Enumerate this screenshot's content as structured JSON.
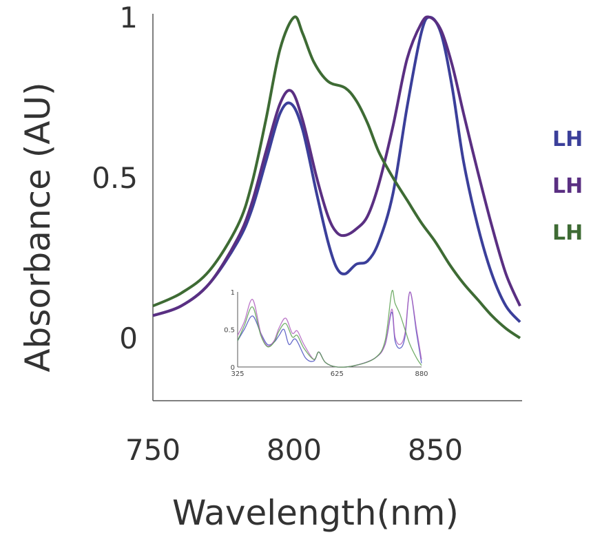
{
  "chart_data": [
    {
      "type": "line",
      "xlabel": "Wavelength(nm)",
      "ylabel": "Absorbance (AU)",
      "xlim": [
        750,
        880
      ],
      "ylim": [
        -0.19,
        1
      ],
      "xticks": [
        "750",
        "800",
        "850"
      ],
      "yticks": [
        "0",
        "0.5",
        "1"
      ],
      "grid": false,
      "legend_position": "right (cropped)",
      "series": [
        {
          "name": "LH",
          "color": "#3b3f9a",
          "x": [
            750,
            760,
            770,
            780,
            785,
            790,
            795,
            799,
            803,
            808,
            812,
            815,
            818,
            822,
            826,
            830,
            835,
            840,
            845,
            848,
            852,
            856,
            860,
            865,
            870,
            875,
            880
          ],
          "y": [
            0.07,
            0.1,
            0.17,
            0.3,
            0.4,
            0.55,
            0.7,
            0.73,
            0.65,
            0.45,
            0.3,
            0.22,
            0.2,
            0.23,
            0.24,
            0.3,
            0.45,
            0.72,
            0.95,
            1.0,
            0.95,
            0.78,
            0.55,
            0.35,
            0.2,
            0.1,
            0.05
          ]
        },
        {
          "name": "LH",
          "color": "#5a2f82",
          "x": [
            750,
            760,
            770,
            780,
            785,
            790,
            795,
            799,
            803,
            808,
            812,
            815,
            818,
            822,
            826,
            830,
            835,
            840,
            845,
            848,
            852,
            856,
            860,
            865,
            870,
            875,
            880
          ],
          "y": [
            0.07,
            0.1,
            0.17,
            0.31,
            0.42,
            0.58,
            0.73,
            0.77,
            0.68,
            0.5,
            0.38,
            0.33,
            0.32,
            0.34,
            0.38,
            0.48,
            0.66,
            0.87,
            0.98,
            1.0,
            0.96,
            0.85,
            0.7,
            0.52,
            0.35,
            0.2,
            0.1
          ]
        },
        {
          "name": "LH",
          "color": "#3e6b34",
          "x": [
            750,
            760,
            770,
            780,
            785,
            790,
            795,
            800,
            803,
            807,
            812,
            818,
            822,
            826,
            830,
            835,
            840,
            845,
            850,
            855,
            860,
            865,
            870,
            875,
            880
          ],
          "y": [
            0.1,
            0.14,
            0.21,
            0.35,
            0.48,
            0.68,
            0.9,
            1.0,
            0.95,
            0.86,
            0.8,
            0.78,
            0.74,
            0.67,
            0.58,
            0.5,
            0.43,
            0.36,
            0.3,
            0.23,
            0.17,
            0.12,
            0.07,
            0.03,
            0.0
          ]
        }
      ]
    },
    {
      "type": "line",
      "role": "inset",
      "xlim": [
        325,
        880
      ],
      "ylim": [
        0,
        1
      ],
      "xticks": [
        "325",
        "625",
        "880"
      ],
      "yticks": [
        "0",
        "0.5",
        "1"
      ],
      "series": [
        {
          "color": "#4a50c0",
          "x": [
            325,
            345,
            370,
            395,
            415,
            435,
            450,
            465,
            480,
            500,
            530,
            555,
            570,
            590,
            625,
            680,
            740,
            770,
            790,
            800,
            815,
            830,
            845,
            865,
            880
          ],
          "y": [
            0.35,
            0.5,
            0.68,
            0.45,
            0.3,
            0.33,
            0.42,
            0.5,
            0.3,
            0.37,
            0.12,
            0.08,
            0.2,
            0.06,
            0,
            0.02,
            0.12,
            0.3,
            0.73,
            0.35,
            0.25,
            0.4,
            1.0,
            0.45,
            0.05
          ]
        },
        {
          "color": "#b060c0",
          "x": [
            325,
            345,
            370,
            395,
            415,
            435,
            450,
            470,
            490,
            505,
            525,
            555,
            570,
            590,
            625,
            680,
            740,
            770,
            790,
            800,
            815,
            830,
            845,
            865,
            880
          ],
          "y": [
            0.42,
            0.6,
            0.9,
            0.45,
            0.28,
            0.35,
            0.52,
            0.65,
            0.45,
            0.48,
            0.3,
            0.1,
            0.2,
            0.06,
            0,
            0.02,
            0.12,
            0.3,
            0.77,
            0.4,
            0.3,
            0.45,
            1.0,
            0.5,
            0.1
          ]
        },
        {
          "color": "#5aa050",
          "x": [
            325,
            345,
            370,
            395,
            415,
            435,
            450,
            470,
            490,
            505,
            525,
            555,
            570,
            590,
            625,
            680,
            740,
            770,
            790,
            800,
            815,
            830,
            845,
            865,
            880
          ],
          "y": [
            0.35,
            0.55,
            0.8,
            0.42,
            0.27,
            0.33,
            0.48,
            0.58,
            0.4,
            0.42,
            0.25,
            0.1,
            0.2,
            0.06,
            0,
            0.02,
            0.12,
            0.35,
            1.0,
            0.85,
            0.7,
            0.5,
            0.3,
            0.12,
            0.02
          ]
        }
      ]
    }
  ]
}
